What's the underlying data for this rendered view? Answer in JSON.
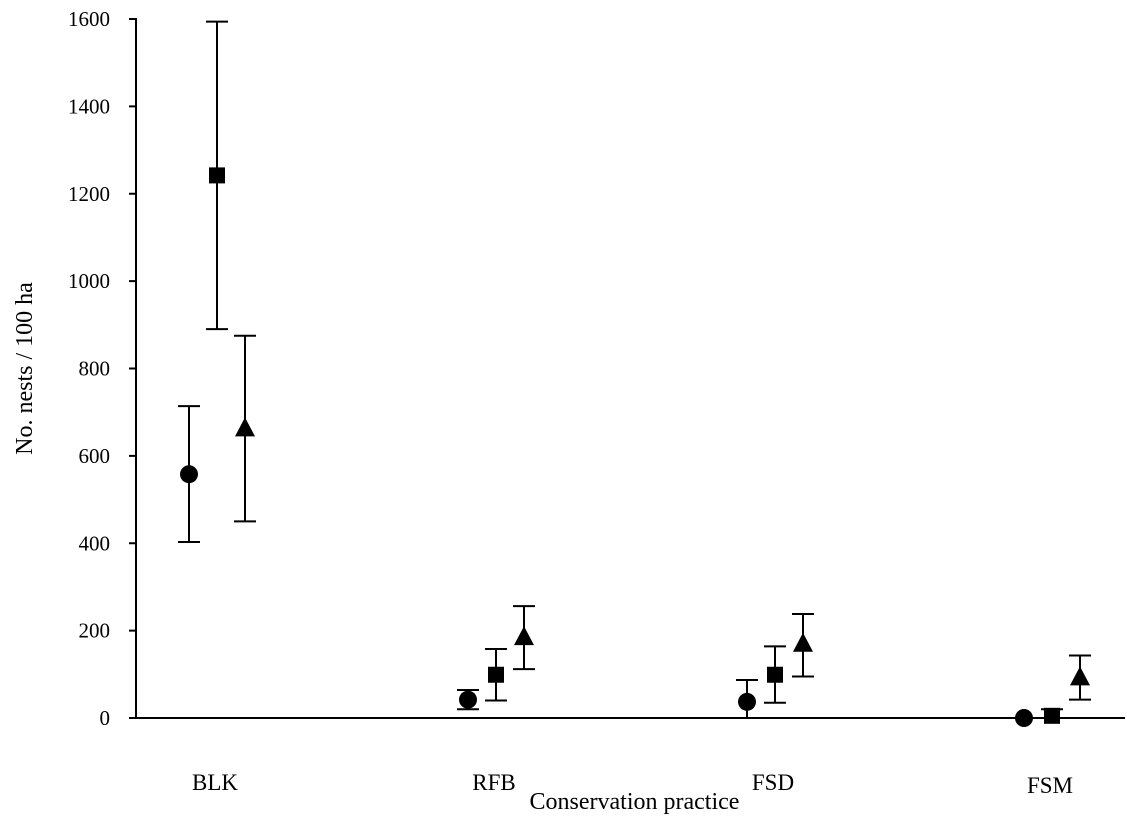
{
  "chart_data": {
    "type": "scatter",
    "title": "",
    "xlabel": "Conservation practice",
    "ylabel": "No. nests / 100 ha",
    "ylim": [
      0,
      1600
    ],
    "yticks": [
      0,
      200,
      400,
      600,
      800,
      1000,
      1200,
      1400,
      1600
    ],
    "grid": false,
    "legend": "none",
    "categories": [
      "BLK",
      "RFB",
      "FSD",
      "FSM"
    ],
    "series": [
      {
        "marker": "circle",
        "values": [
          558,
          42,
          37,
          0
        ],
        "lower": [
          403,
          20,
          0,
          0
        ],
        "upper": [
          714,
          64,
          87,
          0
        ]
      },
      {
        "marker": "square",
        "values": [
          1242,
          99,
          99,
          5
        ],
        "lower": [
          890,
          40,
          35,
          0
        ],
        "upper": [
          1594,
          158,
          164,
          20
        ]
      },
      {
        "marker": "triangle",
        "values": [
          663,
          185,
          170,
          93
        ],
        "lower": [
          450,
          112,
          95,
          42
        ],
        "upper": [
          875,
          256,
          238,
          143
        ]
      }
    ]
  }
}
